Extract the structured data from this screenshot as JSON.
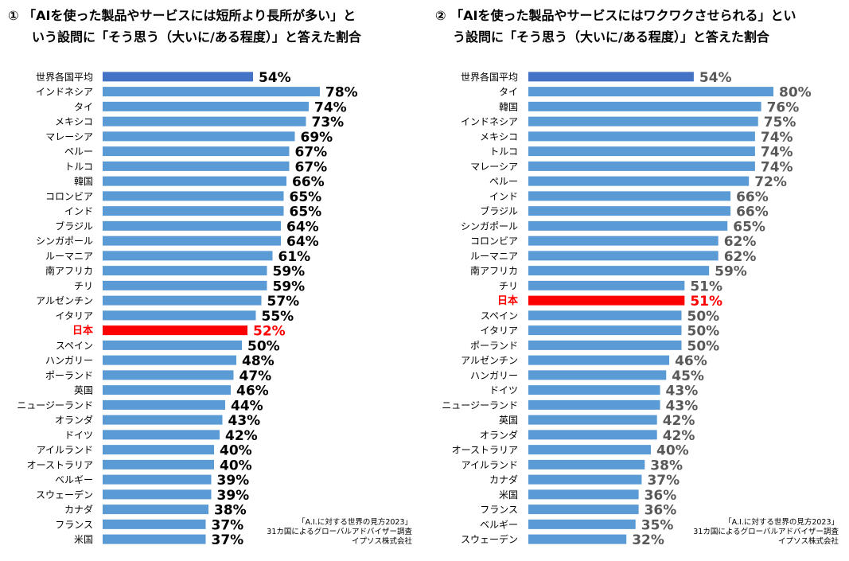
{
  "titles": [
    {
      "line1": "① 「AIを使った製品やサービスには短所より長所が多い」と",
      "line2": "いう設問に「そう思う（大いに/ある程度）」と答えた割合"
    },
    {
      "line1": "② 「AIを使った製品やサービスにはワクワクさせられる」とい",
      "line2": "う設問に「そう思う（大いに/ある程度）」と答えた割合"
    }
  ],
  "sources": [
    [
      "「A.I.に対する世界の見方2023」",
      "31カ国によるグローバルアドバイザー調査",
      "イプソス株式会社"
    ],
    [
      "「A.I.に対する世界の見方2023」",
      "31カ国によるグローバルアドバイザー調査",
      "イプソス株式会社"
    ]
  ],
  "colors": {
    "average_bar": "#4472C4",
    "country_bar": "#5B9BD5",
    "japan_bar": "#FF0000",
    "japan_label": "#FF0000",
    "value_label_chart1": "#000000",
    "value_label_chart2": "#595959"
  },
  "chart_data": [
    {
      "type": "bar",
      "orientation": "horizontal",
      "title": "① 「AIを使った製品やサービスには短所より長所が多い」という設問に「そう思う（大いに/ある程度）」と答えた割合",
      "categories": [
        "世界各国平均",
        "インドネシア",
        "タイ",
        "メキシコ",
        "マレーシア",
        "ペルー",
        "トルコ",
        "韓国",
        "コロンビア",
        "インド",
        "ブラジル",
        "シンガポール",
        "ルーマニア",
        "南アフリカ",
        "チリ",
        "アルゼンチン",
        "イタリア",
        "日本",
        "スペイン",
        "ハンガリー",
        "ポーランド",
        "英国",
        "ニュージーランド",
        "オランダ",
        "ドイツ",
        "アイルランド",
        "オーストラリア",
        "ベルギー",
        "スウェーデン",
        "カナダ",
        "フランス",
        "米国"
      ],
      "values": [
        54,
        78,
        74,
        73,
        69,
        67,
        67,
        66,
        65,
        65,
        64,
        64,
        61,
        59,
        59,
        57,
        55,
        52,
        50,
        48,
        47,
        46,
        44,
        43,
        42,
        40,
        40,
        39,
        39,
        38,
        37,
        37
      ],
      "value_labels": [
        "54%",
        "78%",
        "74%",
        "73%",
        "69%",
        "67%",
        "67%",
        "66%",
        "65%",
        "65%",
        "64%",
        "64%",
        "61%",
        "59%",
        "59%",
        "57%",
        "55%",
        "52%",
        "50%",
        "48%",
        "47%",
        "46%",
        "44%",
        "43%",
        "42%",
        "40%",
        "40%",
        "39%",
        "39%",
        "38%",
        "37%",
        "37%"
      ],
      "highlight": {
        "average": "世界各国平均",
        "japan": "日本"
      },
      "unit": "%",
      "xlim": [
        0,
        100
      ],
      "grid": false,
      "legend": "none"
    },
    {
      "type": "bar",
      "orientation": "horizontal",
      "title": "② 「AIを使った製品やサービスにはワクワクさせられる」という設問に「そう思う（大いに/ある程度）」と答えた割合",
      "categories": [
        "世界各国平均",
        "タイ",
        "韓国",
        "インドネシア",
        "メキシコ",
        "トルコ",
        "マレーシア",
        "ペルー",
        "インド",
        "ブラジル",
        "シンガポール",
        "コロンビア",
        "ルーマニア",
        "南アフリカ",
        "チリ",
        "日本",
        "スペイン",
        "イタリア",
        "ポーランド",
        "アルゼンチン",
        "ハンガリー",
        "ドイツ",
        "ニュージーランド",
        "英国",
        "オランダ",
        "オーストラリア",
        "アイルランド",
        "カナダ",
        "米国",
        "フランス",
        "ベルギー",
        "スウェーデン"
      ],
      "values": [
        54,
        80,
        76,
        75,
        74,
        74,
        74,
        72,
        66,
        66,
        65,
        62,
        62,
        59,
        51,
        51,
        50,
        50,
        50,
        46,
        45,
        43,
        43,
        42,
        42,
        40,
        38,
        37,
        36,
        36,
        35,
        32
      ],
      "value_labels": [
        "54%",
        "80%",
        "76%",
        "75%",
        "74%",
        "74%",
        "74%",
        "72%",
        "66%",
        "66%",
        "65%",
        "62%",
        "62%",
        "59%",
        "51%",
        "51%",
        "50%",
        "50%",
        "50%",
        "46%",
        "45%",
        "43%",
        "43%",
        "42%",
        "42%",
        "40%",
        "38%",
        "37%",
        "36%",
        "36%",
        "35%",
        "32%"
      ],
      "highlight": {
        "average": "世界各国平均",
        "japan": "日本"
      },
      "unit": "%",
      "xlim": [
        0,
        100
      ],
      "grid": false,
      "legend": "none"
    }
  ]
}
